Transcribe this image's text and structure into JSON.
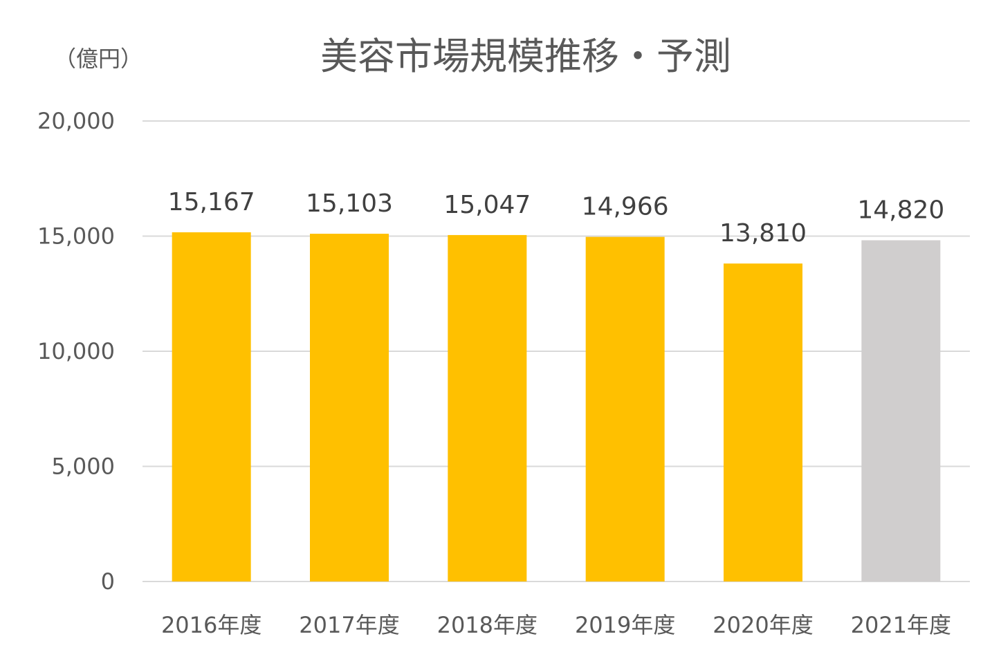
{
  "chart_data": {
    "type": "bar",
    "title": "美容市場規模推移・予測",
    "unit_label": "（億円）",
    "xlabel": "",
    "ylabel": "",
    "ylim": [
      0,
      20000
    ],
    "yticks": [
      0,
      5000,
      10000,
      15000,
      20000
    ],
    "ytick_labels": [
      "0",
      "5,000",
      "10,000",
      "15,000",
      "20,000"
    ],
    "grid": true,
    "legend": "none",
    "categories": [
      "2016年度",
      "2017年度",
      "2018年度",
      "2019年度",
      "2020年度",
      "2021年度"
    ],
    "values": [
      15167,
      15103,
      15047,
      14966,
      13810,
      14820
    ],
    "value_labels": [
      "15,167",
      "15,103",
      "15,047",
      "14,966",
      "13,810",
      "14,820"
    ],
    "bar_colors": [
      "#FFC000",
      "#FFC000",
      "#FFC000",
      "#FFC000",
      "#FFC000",
      "#D0CECE"
    ]
  }
}
